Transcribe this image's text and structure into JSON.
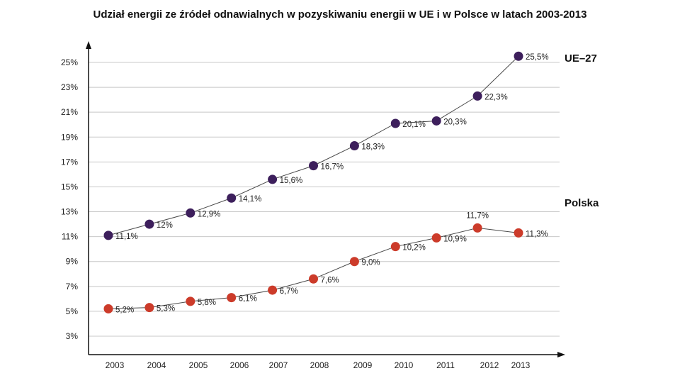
{
  "chart_data": {
    "type": "line",
    "title": "Udział energii ze źródeł odnawialnych w pozyskiwaniu energii w UE  i w Polsce w latach 2003-2013",
    "xlabel": "",
    "ylabel": "",
    "categories": [
      "2003",
      "2004",
      "2005",
      "2006",
      "2007",
      "2008",
      "2009",
      "2010",
      "2011",
      "2012",
      "2013"
    ],
    "y_ticks": [
      3,
      5,
      7,
      9,
      11,
      13,
      15,
      17,
      19,
      21,
      23,
      25
    ],
    "y_tick_labels": [
      "3%",
      "5%",
      "7%",
      "9%",
      "11%",
      "13%",
      "15%",
      "17%",
      "19%",
      "21%",
      "23%",
      "25%"
    ],
    "ylim": [
      1.3,
      26.5
    ],
    "grid": true,
    "series": [
      {
        "name": "UE–27",
        "color": "#3d1f5c",
        "values": [
          11.1,
          12.0,
          12.9,
          14.1,
          15.6,
          16.7,
          18.3,
          20.1,
          20.3,
          22.3,
          25.5
        ],
        "labels": [
          "11,1%",
          "12%",
          "12,9%",
          "14,1%",
          "15,6%",
          "16,7%",
          "18,3%",
          "20,1%",
          "20,3%",
          "22,3%",
          "25,5%"
        ]
      },
      {
        "name": "Polska",
        "color": "#cc3b2a",
        "values": [
          5.2,
          5.3,
          5.8,
          6.1,
          6.7,
          7.6,
          9.0,
          10.2,
          10.9,
          11.7,
          11.3
        ],
        "labels": [
          "5,2%",
          "5,3%",
          "5,8%",
          "6,1%",
          "6,7%",
          "7,6%",
          "9,0%",
          "10,2%",
          "10,9%",
          "11,7%",
          "11,3%"
        ]
      }
    ]
  }
}
